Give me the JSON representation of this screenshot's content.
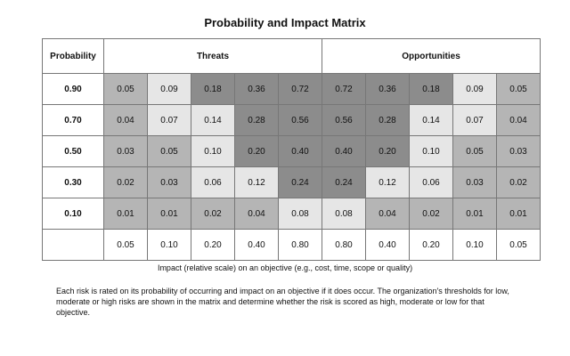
{
  "title": "Probability and Impact Matrix",
  "header": {
    "probability": "Probability",
    "threats": "Threats",
    "opportunities": "Opportunities"
  },
  "rows": [
    {
      "probability": "0.90",
      "threats": [
        "0.05",
        "0.09",
        "0.18",
        "0.36",
        "0.72"
      ],
      "opportunities": [
        "0.72",
        "0.36",
        "0.18",
        "0.09",
        "0.05"
      ]
    },
    {
      "probability": "0.70",
      "threats": [
        "0.04",
        "0.07",
        "0.14",
        "0.28",
        "0.56"
      ],
      "opportunities": [
        "0.56",
        "0.28",
        "0.14",
        "0.07",
        "0.04"
      ]
    },
    {
      "probability": "0.50",
      "threats": [
        "0.03",
        "0.05",
        "0.10",
        "0.20",
        "0.40"
      ],
      "opportunities": [
        "0.40",
        "0.20",
        "0.10",
        "0.05",
        "0.03"
      ]
    },
    {
      "probability": "0.30",
      "threats": [
        "0.02",
        "0.03",
        "0.06",
        "0.12",
        "0.24"
      ],
      "opportunities": [
        "0.24",
        "0.12",
        "0.06",
        "0.03",
        "0.02"
      ]
    },
    {
      "probability": "0.10",
      "threats": [
        "0.01",
        "0.01",
        "0.02",
        "0.04",
        "0.08"
      ],
      "opportunities": [
        "0.08",
        "0.04",
        "0.02",
        "0.01",
        "0.01"
      ]
    }
  ],
  "shading": [
    {
      "threats": [
        "mid",
        "light",
        "dark",
        "dark",
        "dark"
      ],
      "opportunities": [
        "dark",
        "dark",
        "dark",
        "light",
        "mid"
      ]
    },
    {
      "threats": [
        "mid",
        "light",
        "light",
        "dark",
        "dark"
      ],
      "opportunities": [
        "dark",
        "dark",
        "light",
        "light",
        "mid"
      ]
    },
    {
      "threats": [
        "mid",
        "mid",
        "light",
        "dark",
        "dark"
      ],
      "opportunities": [
        "dark",
        "dark",
        "light",
        "mid",
        "mid"
      ]
    },
    {
      "threats": [
        "mid",
        "mid",
        "light",
        "light",
        "dark"
      ],
      "opportunities": [
        "dark",
        "light",
        "light",
        "mid",
        "mid"
      ]
    },
    {
      "threats": [
        "mid",
        "mid",
        "mid",
        "mid",
        "light"
      ],
      "opportunities": [
        "light",
        "mid",
        "mid",
        "mid",
        "mid"
      ]
    }
  ],
  "impact_row": {
    "threats": [
      "0.05",
      "0.10",
      "0.20",
      "0.40",
      "0.80"
    ],
    "opportunities": [
      "0.80",
      "0.40",
      "0.20",
      "0.10",
      "0.05"
    ]
  },
  "caption": "Impact (relative scale) on an objective  (e.g., cost, time, scope or quality)",
  "note": "Each risk is rated on its probability of occurring and impact on an objective if it does occur. The organization's thresholds for low, moderate or high risks are shown in the matrix and determine whether the risk is scored as high, moderate or low for that objective."
}
